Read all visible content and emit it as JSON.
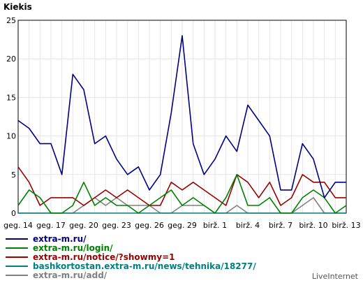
{
  "chart_data": {
    "type": "line",
    "title": "Kiekis",
    "xlabel": "",
    "ylabel": "",
    "ylim": [
      0,
      25
    ],
    "y_ticks": [
      0,
      5,
      10,
      15,
      20,
      25
    ],
    "x_tick_labels": [
      "geg. 14",
      "geg. 17",
      "geg. 20",
      "geg. 23",
      "geg. 26",
      "geg. 29",
      "birž. 1",
      "birž. 4",
      "birž. 7",
      "birž. 10",
      "birž. 13"
    ],
    "grid": true,
    "legend_position": "bottom",
    "series": [
      {
        "name": "extra-m.ru/",
        "color": "#000080",
        "values": [
          12,
          11,
          9,
          9,
          5,
          18,
          16,
          9,
          10,
          7,
          5,
          6,
          3,
          5,
          13,
          23,
          9,
          5,
          7,
          10,
          8,
          14,
          12,
          10,
          3,
          3,
          9,
          7,
          2,
          4,
          4
        ]
      },
      {
        "name": "extra-m.ru/login/",
        "color": "#008000",
        "values": [
          1,
          3,
          2,
          0,
          0,
          1,
          4,
          1,
          2,
          1,
          1,
          0,
          1,
          2,
          3,
          1,
          2,
          1,
          0,
          2,
          5,
          1,
          1,
          2,
          0,
          0,
          2,
          3,
          2,
          0,
          1
        ]
      },
      {
        "name": "extra-m.ru/notice/?showmy=1",
        "color": "#990000",
        "values": [
          6,
          4,
          1,
          2,
          2,
          2,
          1,
          2,
          3,
          2,
          3,
          2,
          1,
          1,
          4,
          3,
          4,
          3,
          2,
          1,
          5,
          4,
          2,
          4,
          1,
          2,
          5,
          4,
          4,
          2,
          2
        ]
      },
      {
        "name": "bashkortostan.extra-m.ru/news/tehnika/18277/",
        "color": "#008080",
        "values": [
          0,
          0,
          0,
          0,
          0,
          0,
          0,
          0,
          0,
          0,
          0,
          0,
          0,
          0,
          0,
          0,
          0,
          0,
          0,
          0,
          0,
          0,
          0,
          0,
          0,
          0,
          0,
          0,
          0,
          0,
          0
        ]
      },
      {
        "name": "extra-m.ru/add/",
        "color": "#808080",
        "values": [
          0,
          0,
          0,
          0,
          0,
          0,
          1,
          2,
          1,
          2,
          1,
          1,
          1,
          0,
          0,
          1,
          1,
          1,
          0,
          0,
          1,
          0,
          0,
          0,
          0,
          0,
          1,
          2,
          0,
          0,
          0
        ]
      }
    ]
  },
  "branding": "LiveInternet"
}
